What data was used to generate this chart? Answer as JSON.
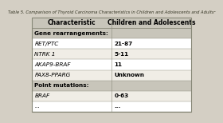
{
  "title": "Table 5. Comparison of Thyroid Carcinoma Characteristics in Children and Adolescents and Adultsᵃ",
  "col_headers": [
    "Characteristic",
    "Children and Adolescents"
  ],
  "rows": [
    {
      "label": "Gene rearrangements:",
      "value": "",
      "bold_label": true,
      "italic_label": false
    },
    {
      "label": "RET/PTC",
      "value": "21-87",
      "bold_label": false,
      "italic_label": true
    },
    {
      "label": "NTRK 1",
      "value": "5-11",
      "bold_label": false,
      "italic_label": true
    },
    {
      "label": "AKAP9-BRAF",
      "value": "11",
      "bold_label": false,
      "italic_label": true
    },
    {
      "label": "PAX8-PPARG",
      "value": "Unknown",
      "bold_label": false,
      "italic_label": true
    },
    {
      "label": "Point mutations:",
      "value": "",
      "bold_label": true,
      "italic_label": false
    },
    {
      "label": "BRAF",
      "value": "0-63",
      "bold_label": false,
      "italic_label": true
    },
    {
      "label": "...",
      "value": "...",
      "bold_label": false,
      "italic_label": true
    }
  ],
  "bg_color": "#d4cfc4",
  "table_bg": "#f0ede6",
  "header_bg": "#c8c5ba",
  "row_alt_bg": "#e8e5de",
  "border_color": "#888878",
  "title_color": "#333322",
  "title_fontsize": 3.8,
  "header_fontsize": 5.5,
  "cell_fontsize": 5.2,
  "col_split": 0.5
}
